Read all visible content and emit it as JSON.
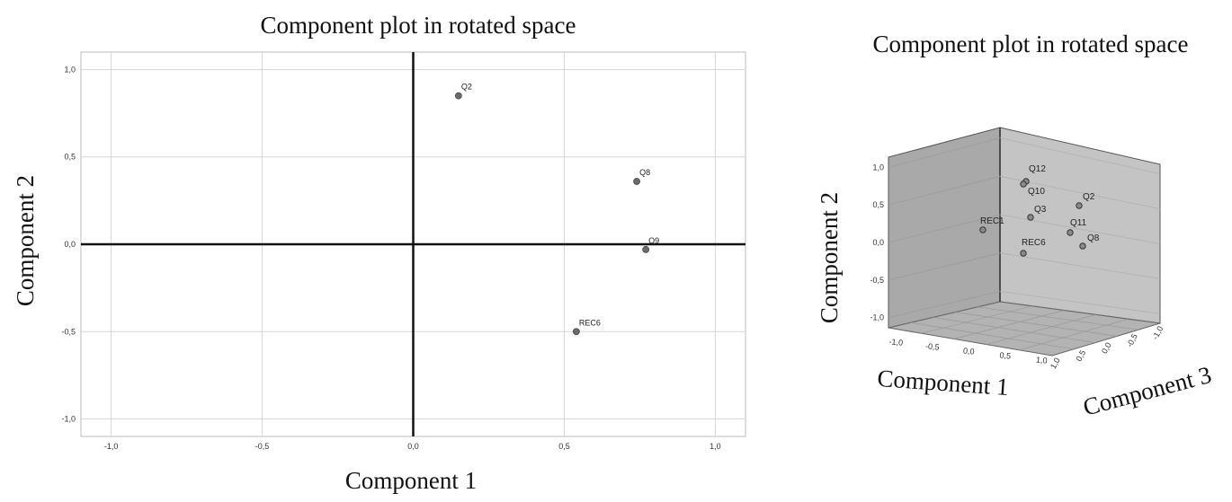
{
  "chart_data": [
    {
      "type": "scatter",
      "title": "Component plot in rotated space",
      "xlabel": "Component 1",
      "ylabel": "Component 2",
      "xlim": [
        -1.1,
        1.1
      ],
      "ylim": [
        -1.1,
        1.1
      ],
      "xticks": [
        -1.0,
        -0.5,
        0.0,
        0.5,
        1.0
      ],
      "yticks": [
        -1.0,
        -0.5,
        0.0,
        0.5,
        1.0
      ],
      "tick_labels": [
        "-1,0",
        "-0,5",
        "0,0",
        "0,5",
        "1,0"
      ],
      "grid": true,
      "points": [
        {
          "label": "Q2",
          "x": 0.15,
          "y": 0.85
        },
        {
          "label": "Q8",
          "x": 0.74,
          "y": 0.36
        },
        {
          "label": "Q9",
          "x": 0.77,
          "y": -0.03
        },
        {
          "label": "REC6",
          "x": 0.54,
          "y": -0.5
        }
      ],
      "point_color": "#6b6b6b"
    },
    {
      "type": "scatter3d",
      "title": "Component plot in rotated space",
      "xlabel": "Component 1",
      "ylabel": "Component 2",
      "zlabel": "Component 3",
      "ylim": [
        -1.0,
        1.0
      ],
      "y_tick_labels": [
        "1,0",
        "0,5",
        "0,0",
        "-0,5",
        "-1,0"
      ],
      "x_tick_labels": [
        "-1,0",
        "-0,5",
        "0,0",
        "0,5",
        "1,0"
      ],
      "z_tick_labels": [
        "1,0",
        "0,5",
        "0,0",
        "-0,5",
        "-1,0"
      ],
      "points": [
        {
          "label": "Q12",
          "y": 0.8
        },
        {
          "label": "Q10",
          "y": 0.78
        },
        {
          "label": "Q3",
          "y": 0.3
        },
        {
          "label": "REC1",
          "y": 0.15
        },
        {
          "label": "REC6",
          "y": -0.1
        },
        {
          "label": "Q2",
          "y": 0.45
        },
        {
          "label": "Q11",
          "y": 0.12
        },
        {
          "label": "Q8",
          "y": -0.02
        }
      ],
      "panel_color": "#b9b9b9"
    }
  ]
}
